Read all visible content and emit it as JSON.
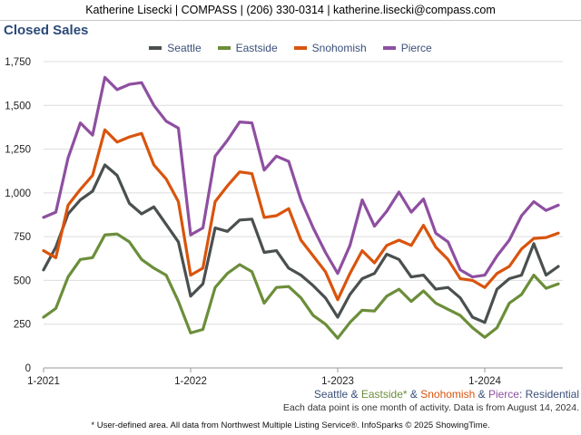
{
  "header": {
    "text": "Katherine Lisecki | COMPASS | (206) 330-0314 | katherine.lisecki@compass.com"
  },
  "notes": {
    "area_prefix_seattle": "Seattle",
    "area_amp1": " & ",
    "area_eastside": "Eastside*",
    "area_amp2": " & ",
    "area_snohomish": "Snohomish",
    "area_amp3": " & ",
    "area_pierce": "Pierce",
    "area_suffix": ": Residential",
    "activity": "Each data point is one month of activity. Data is from August 14, 2024.",
    "footer": "* User-defined area. All data from Northwest Multiple Listing Service®. InfoSparks © 2025 ShowingTime."
  },
  "chart_data": {
    "type": "line",
    "title": "Closed Sales",
    "x_tick_labels": [
      "1-2021",
      "1-2022",
      "1-2023",
      "1-2024"
    ],
    "x_start": "2021-01",
    "x_end": "2024-07",
    "ylim": [
      0,
      1750
    ],
    "y_ticks": [
      0,
      250,
      500,
      750,
      "1,000",
      "1,250",
      "1,500",
      "1,750"
    ],
    "grid": true,
    "legend_position": "top-center",
    "series": [
      {
        "name": "Seattle",
        "color": "#4a4f4f",
        "values": [
          560,
          690,
          880,
          960,
          1010,
          1160,
          1100,
          940,
          880,
          920,
          820,
          720,
          410,
          480,
          800,
          780,
          845,
          850,
          660,
          670,
          570,
          530,
          470,
          400,
          290,
          420,
          510,
          540,
          650,
          620,
          520,
          530,
          450,
          460,
          400,
          290,
          260,
          450,
          510,
          530,
          710,
          530,
          580
        ]
      },
      {
        "name": "Eastside",
        "color": "#6b8e3a",
        "values": [
          290,
          340,
          520,
          620,
          630,
          760,
          765,
          720,
          620,
          570,
          530,
          380,
          200,
          220,
          460,
          540,
          590,
          550,
          370,
          460,
          465,
          400,
          300,
          250,
          170,
          260,
          330,
          325,
          410,
          450,
          380,
          440,
          370,
          335,
          300,
          230,
          175,
          230,
          370,
          420,
          530,
          455,
          480
        ]
      },
      {
        "name": "Snohomish",
        "color": "#d9540d",
        "values": [
          670,
          630,
          930,
          1020,
          1100,
          1360,
          1290,
          1320,
          1340,
          1160,
          1080,
          950,
          530,
          570,
          950,
          1040,
          1120,
          1110,
          860,
          870,
          910,
          730,
          640,
          550,
          390,
          540,
          670,
          600,
          700,
          730,
          700,
          815,
          690,
          620,
          510,
          500,
          460,
          540,
          580,
          680,
          740,
          745,
          770
        ]
      },
      {
        "name": "Pierce",
        "color": "#8e4fa0",
        "values": [
          860,
          890,
          1200,
          1400,
          1330,
          1660,
          1590,
          1620,
          1630,
          1500,
          1410,
          1370,
          760,
          800,
          1210,
          1300,
          1405,
          1400,
          1130,
          1210,
          1180,
          960,
          800,
          660,
          540,
          700,
          960,
          810,
          895,
          1005,
          890,
          965,
          770,
          720,
          560,
          520,
          530,
          640,
          730,
          870,
          950,
          900,
          930
        ]
      }
    ]
  }
}
